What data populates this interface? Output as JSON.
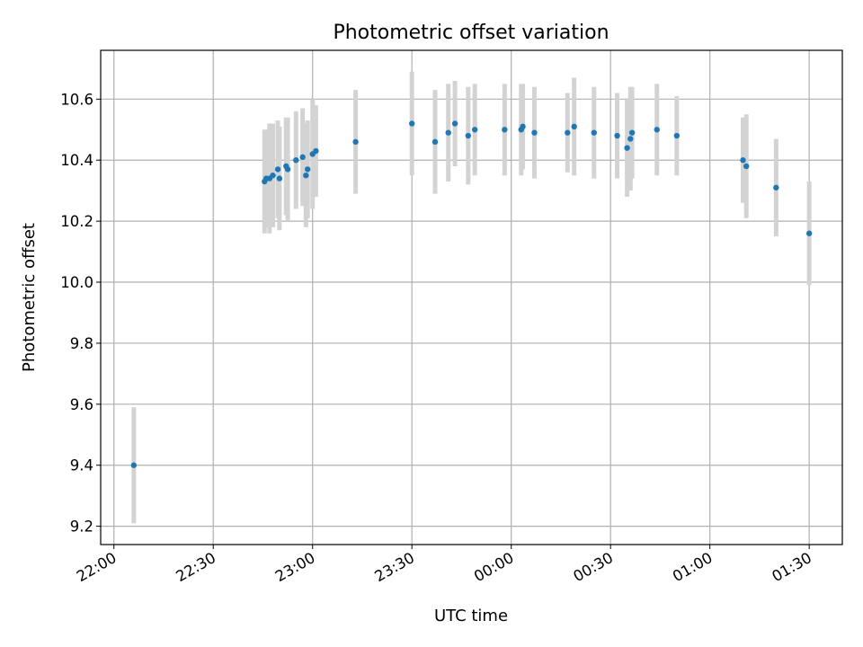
{
  "chart_data": {
    "type": "scatter",
    "title": "Photometric offset variation",
    "xlabel": "UTC time",
    "ylabel": "Photometric offset",
    "x_ticks": [
      "22:00",
      "22:30",
      "23:00",
      "23:30",
      "00:00",
      "00:30",
      "01:00",
      "01:30"
    ],
    "x_tick_minutes": [
      0,
      30,
      60,
      90,
      120,
      150,
      180,
      210
    ],
    "y_ticks": [
      9.2,
      9.4,
      9.6,
      9.8,
      10.0,
      10.2,
      10.4,
      10.6
    ],
    "ylim": [
      9.14,
      10.76
    ],
    "xlim_minutes": [
      -4,
      220
    ],
    "grid": true,
    "colors": {
      "points": "#1f77b4",
      "errorbars": "#d3d3d3"
    },
    "points": [
      {
        "t": 6,
        "y": 9.4,
        "err": 0.19
      },
      {
        "t": 45.5,
        "y": 10.33,
        "err": 0.17
      },
      {
        "t": 46,
        "y": 10.34,
        "err": 0.16
      },
      {
        "t": 47,
        "y": 10.34,
        "err": 0.18
      },
      {
        "t": 48,
        "y": 10.35,
        "err": 0.17
      },
      {
        "t": 49.5,
        "y": 10.37,
        "err": 0.16
      },
      {
        "t": 50,
        "y": 10.34,
        "err": 0.17
      },
      {
        "t": 52,
        "y": 10.38,
        "err": 0.16
      },
      {
        "t": 52.5,
        "y": 10.37,
        "err": 0.17
      },
      {
        "t": 55,
        "y": 10.4,
        "err": 0.16
      },
      {
        "t": 57,
        "y": 10.41,
        "err": 0.16
      },
      {
        "t": 58,
        "y": 10.35,
        "err": 0.17
      },
      {
        "t": 58.5,
        "y": 10.37,
        "err": 0.16
      },
      {
        "t": 60,
        "y": 10.42,
        "err": 0.18
      },
      {
        "t": 61,
        "y": 10.43,
        "err": 0.15
      },
      {
        "t": 73,
        "y": 10.46,
        "err": 0.17
      },
      {
        "t": 90,
        "y": 10.52,
        "err": 0.17
      },
      {
        "t": 97,
        "y": 10.46,
        "err": 0.17
      },
      {
        "t": 101,
        "y": 10.49,
        "err": 0.16
      },
      {
        "t": 103,
        "y": 10.52,
        "err": 0.14
      },
      {
        "t": 107,
        "y": 10.48,
        "err": 0.16
      },
      {
        "t": 109,
        "y": 10.5,
        "err": 0.15
      },
      {
        "t": 118,
        "y": 10.5,
        "err": 0.15
      },
      {
        "t": 123,
        "y": 10.5,
        "err": 0.15
      },
      {
        "t": 123.5,
        "y": 10.51,
        "err": 0.14
      },
      {
        "t": 127,
        "y": 10.49,
        "err": 0.15
      },
      {
        "t": 137,
        "y": 10.49,
        "err": 0.13
      },
      {
        "t": 139,
        "y": 10.51,
        "err": 0.16
      },
      {
        "t": 145,
        "y": 10.49,
        "err": 0.15
      },
      {
        "t": 152,
        "y": 10.48,
        "err": 0.14
      },
      {
        "t": 155,
        "y": 10.44,
        "err": 0.16
      },
      {
        "t": 156,
        "y": 10.47,
        "err": 0.17
      },
      {
        "t": 156.5,
        "y": 10.49,
        "err": 0.15
      },
      {
        "t": 164,
        "y": 10.5,
        "err": 0.15
      },
      {
        "t": 170,
        "y": 10.48,
        "err": 0.13
      },
      {
        "t": 190,
        "y": 10.4,
        "err": 0.14
      },
      {
        "t": 191,
        "y": 10.38,
        "err": 0.17
      },
      {
        "t": 200,
        "y": 10.31,
        "err": 0.16
      },
      {
        "t": 210,
        "y": 10.16,
        "err": 0.17
      }
    ]
  }
}
